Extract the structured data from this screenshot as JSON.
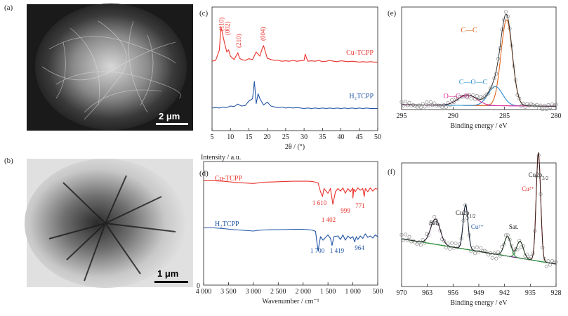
{
  "panels": {
    "a": {
      "label": "(a)",
      "scale_bar": "2 μm"
    },
    "b": {
      "label": "(b)",
      "scale_bar": "1 μm"
    }
  },
  "colors": {
    "red": "#e8312a",
    "blue": "#2255a4",
    "orange": "#e0651c",
    "blue2": "#2a8fd0",
    "pink": "#e0309a",
    "purple": "#7a2b8e",
    "green": "#2e9a3a",
    "baseline": "#8a4fb0",
    "raw": "#888888"
  },
  "chart_data": [
    {
      "panel": "(c)",
      "type": "line",
      "xlabel": "2θ / (°)",
      "xlim": [
        5,
        50
      ],
      "xticks": [
        5,
        10,
        15,
        20,
        25,
        30,
        35,
        40,
        45,
        50
      ],
      "series": [
        {
          "name": "Cu-TCPP",
          "x": [
            5,
            6,
            7,
            7.4,
            7.8,
            8.3,
            9,
            9.5,
            10,
            11,
            12,
            12.5,
            13,
            14,
            15,
            16,
            17,
            18,
            18.5,
            19,
            19.5,
            20,
            21,
            22,
            23,
            24,
            25,
            26,
            27,
            28,
            29,
            30,
            30.3,
            30.7,
            31,
            32,
            33,
            34,
            35,
            36,
            37,
            38,
            39,
            40,
            41,
            42,
            43,
            44,
            45,
            46,
            47,
            48,
            49,
            50
          ],
          "y": [
            0.08,
            0.1,
            0.35,
            0.9,
            0.75,
            0.55,
            0.3,
            0.35,
            0.2,
            0.12,
            0.28,
            0.15,
            0.12,
            0.1,
            0.14,
            0.12,
            0.3,
            0.2,
            0.35,
            0.45,
            0.3,
            0.15,
            0.12,
            0.1,
            0.1,
            0.08,
            0.09,
            0.08,
            0.1,
            0.08,
            0.09,
            0.1,
            0.25,
            0.15,
            0.08,
            0.09,
            0.08,
            0.1,
            0.07,
            0.08,
            0.1,
            0.08,
            0.07,
            0.09,
            0.08,
            0.07,
            0.08,
            0.07,
            0.06,
            0.07,
            0.06,
            0.07,
            0.06,
            0.06
          ]
        },
        {
          "name": "H₂TCPP",
          "x": [
            5,
            6,
            7,
            8,
            9,
            10,
            11,
            12,
            13,
            14,
            15,
            16,
            16.5,
            17,
            17.5,
            18,
            19,
            20,
            21,
            22,
            23,
            24,
            25,
            26,
            27,
            28,
            29,
            30,
            31,
            32,
            33,
            34,
            35,
            36,
            37,
            38,
            39,
            40,
            41,
            42,
            43,
            44,
            45,
            46,
            47,
            48,
            49,
            50
          ],
          "y": [
            0.06,
            0.07,
            0.06,
            0.08,
            0.07,
            0.1,
            0.09,
            0.14,
            0.1,
            0.11,
            0.2,
            0.25,
            0.6,
            0.15,
            0.35,
            0.25,
            0.12,
            0.18,
            0.1,
            0.08,
            0.07,
            0.08,
            0.06,
            0.07,
            0.06,
            0.07,
            0.06,
            0.05,
            0.06,
            0.05,
            0.06,
            0.05,
            0.06,
            0.05,
            0.06,
            0.05,
            0.06,
            0.05,
            0.06,
            0.05,
            0.06,
            0.05,
            0.06,
            0.05,
            0.06,
            0.05,
            0.05,
            0.05
          ]
        }
      ],
      "annotations": [
        {
          "text": "(110)",
          "x": 7.6
        },
        {
          "text": "(002)",
          "x": 9.2
        },
        {
          "text": "(210)",
          "x": 12.2
        },
        {
          "text": "(004)",
          "x": 18.8
        }
      ]
    },
    {
      "panel": "(d)",
      "type": "line",
      "xlabel": "Wavenumber / cm⁻¹",
      "ylabel": "Intensity / a.u.",
      "xlim": [
        4000,
        500
      ],
      "xticks": [
        4000,
        3500,
        3000,
        2500,
        2000,
        1500,
        1000,
        500
      ],
      "xtick_labels": [
        "4 000",
        "3 500",
        "3 000",
        "2 500",
        "2 000",
        "1 500",
        "1 000",
        "500"
      ],
      "y_origin_label": "0",
      "series": [
        {
          "name": "Cu-TCPP",
          "x": [
            4000,
            3800,
            3600,
            3400,
            3200,
            3000,
            2900,
            2800,
            2600,
            2400,
            2200,
            2000,
            1900,
            1800,
            1700,
            1650,
            1610,
            1580,
            1500,
            1450,
            1402,
            1350,
            1300,
            1250,
            1200,
            1150,
            1100,
            1050,
            1000,
            999,
            980,
            950,
            900,
            850,
            800,
            771,
            750,
            700,
            650,
            600,
            550,
            500
          ],
          "y": [
            0.95,
            0.95,
            0.93,
            0.9,
            0.88,
            0.86,
            0.88,
            0.9,
            0.91,
            0.92,
            0.93,
            0.93,
            0.93,
            0.92,
            0.88,
            0.6,
            0.45,
            0.7,
            0.55,
            0.7,
            0.2,
            0.6,
            0.7,
            0.62,
            0.72,
            0.55,
            0.7,
            0.6,
            0.72,
            0.4,
            0.68,
            0.6,
            0.72,
            0.65,
            0.7,
            0.45,
            0.7,
            0.6,
            0.72,
            0.62,
            0.7,
            0.68
          ]
        },
        {
          "name": "H₂TCPP",
          "x": [
            4000,
            3800,
            3600,
            3400,
            3200,
            3000,
            2900,
            2800,
            2600,
            2400,
            2200,
            2000,
            1900,
            1800,
            1750,
            1700,
            1650,
            1600,
            1500,
            1450,
            1419,
            1380,
            1300,
            1250,
            1200,
            1150,
            1100,
            1050,
            1000,
            964,
            930,
            900,
            850,
            800,
            750,
            700,
            650,
            600,
            550,
            500
          ],
          "y": [
            0.95,
            0.95,
            0.93,
            0.9,
            0.88,
            0.86,
            0.88,
            0.89,
            0.9,
            0.9,
            0.91,
            0.91,
            0.9,
            0.88,
            0.85,
            0.3,
            0.7,
            0.6,
            0.75,
            0.65,
            0.45,
            0.7,
            0.72,
            0.62,
            0.75,
            0.6,
            0.72,
            0.65,
            0.7,
            0.55,
            0.7,
            0.62,
            0.72,
            0.65,
            0.78,
            0.68,
            0.72,
            0.66,
            0.75,
            0.7
          ]
        }
      ],
      "annotations": [
        {
          "text": "1 610",
          "series": "Cu-TCPP"
        },
        {
          "text": "1 402",
          "series": "Cu-TCPP"
        },
        {
          "text": "999",
          "series": "Cu-TCPP"
        },
        {
          "text": "771",
          "series": "Cu-TCPP"
        },
        {
          "text": "1 700",
          "series": "H₂TCPP"
        },
        {
          "text": "1 419",
          "series": "H₂TCPP"
        },
        {
          "text": "964",
          "series": "H₂TCPP"
        }
      ]
    },
    {
      "panel": "(e)",
      "type": "line",
      "xlabel": "Binding energy / eV",
      "xlim": [
        295,
        280
      ],
      "xticks": [
        295,
        290,
        285,
        280
      ],
      "components": [
        {
          "name": "C—C",
          "center": 284.8,
          "height": 0.9,
          "sigma": 0.55
        },
        {
          "name": "C—O—C",
          "center": 285.9,
          "height": 0.2,
          "sigma": 0.7
        },
        {
          "name": "O—C=O",
          "center": 288.6,
          "height": 0.11,
          "sigma": 0.9
        }
      ],
      "baseline": [
        0.02,
        0.035
      ]
    },
    {
      "panel": "(f)",
      "type": "line",
      "xlabel": "Binding energy / eV",
      "xlim": [
        970,
        928
      ],
      "xticks": [
        970,
        963,
        956,
        949,
        942,
        935,
        928
      ],
      "components": [
        {
          "name": "Cu2p3/2 Cu²⁺",
          "center": 932.8,
          "height": 0.78,
          "sigma": 0.6
        },
        {
          "name": "Cu2p1/2 Cu²⁺",
          "center": 952.6,
          "height": 0.32,
          "sigma": 0.65
        },
        {
          "name": "Sat.",
          "center": 960.8,
          "height": 0.18,
          "sigma": 1.3
        },
        {
          "name": "Sat. 1",
          "center": 941.2,
          "height": 0.14,
          "sigma": 0.9
        },
        {
          "name": "Sat. 2",
          "center": 937.8,
          "height": 0.12,
          "sigma": 0.9
        }
      ],
      "baseline": [
        0.12,
        0.3
      ],
      "annotations": [
        {
          "text": "Sat.",
          "x": 961.2
        },
        {
          "text": "Cu2p",
          "sub": "1/2",
          "x": 952.6
        },
        {
          "text": "Cu²⁺",
          "x": 949.4
        },
        {
          "text": "Sat.",
          "x": 939.5
        },
        {
          "text": "Cu2p",
          "sub": "3/2",
          "x": 932.8
        },
        {
          "text": "Cu²⁺",
          "x": 935.6
        }
      ]
    }
  ]
}
